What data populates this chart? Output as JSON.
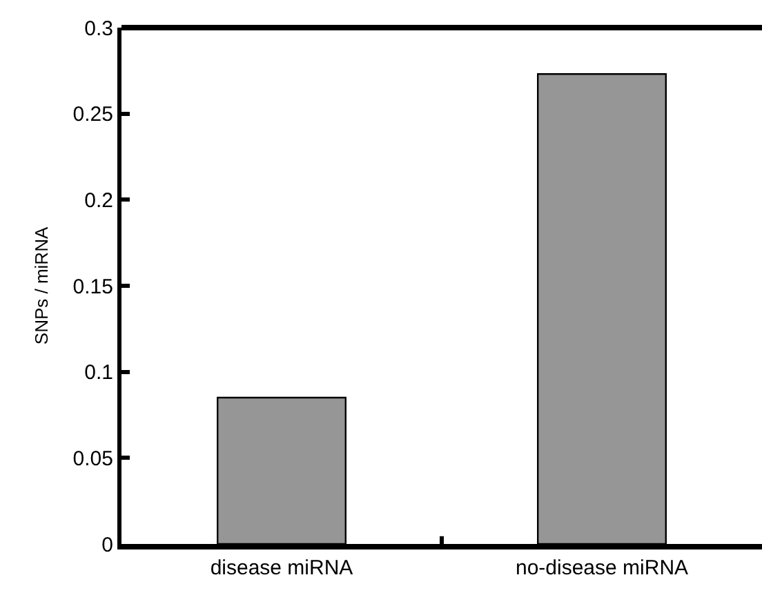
{
  "chart_data": {
    "type": "bar",
    "ylabel": "SNPs / miRNA",
    "categories": [
      "disease miRNA",
      "no-disease miRNA"
    ],
    "series": [
      {
        "color": "#969696",
        "values": [
          0.085,
          0.273
        ]
      }
    ],
    "ylim": [
      0,
      0.3
    ],
    "yticks": [
      0,
      0.05,
      0.1,
      0.15,
      0.2,
      0.25,
      0.3
    ]
  }
}
